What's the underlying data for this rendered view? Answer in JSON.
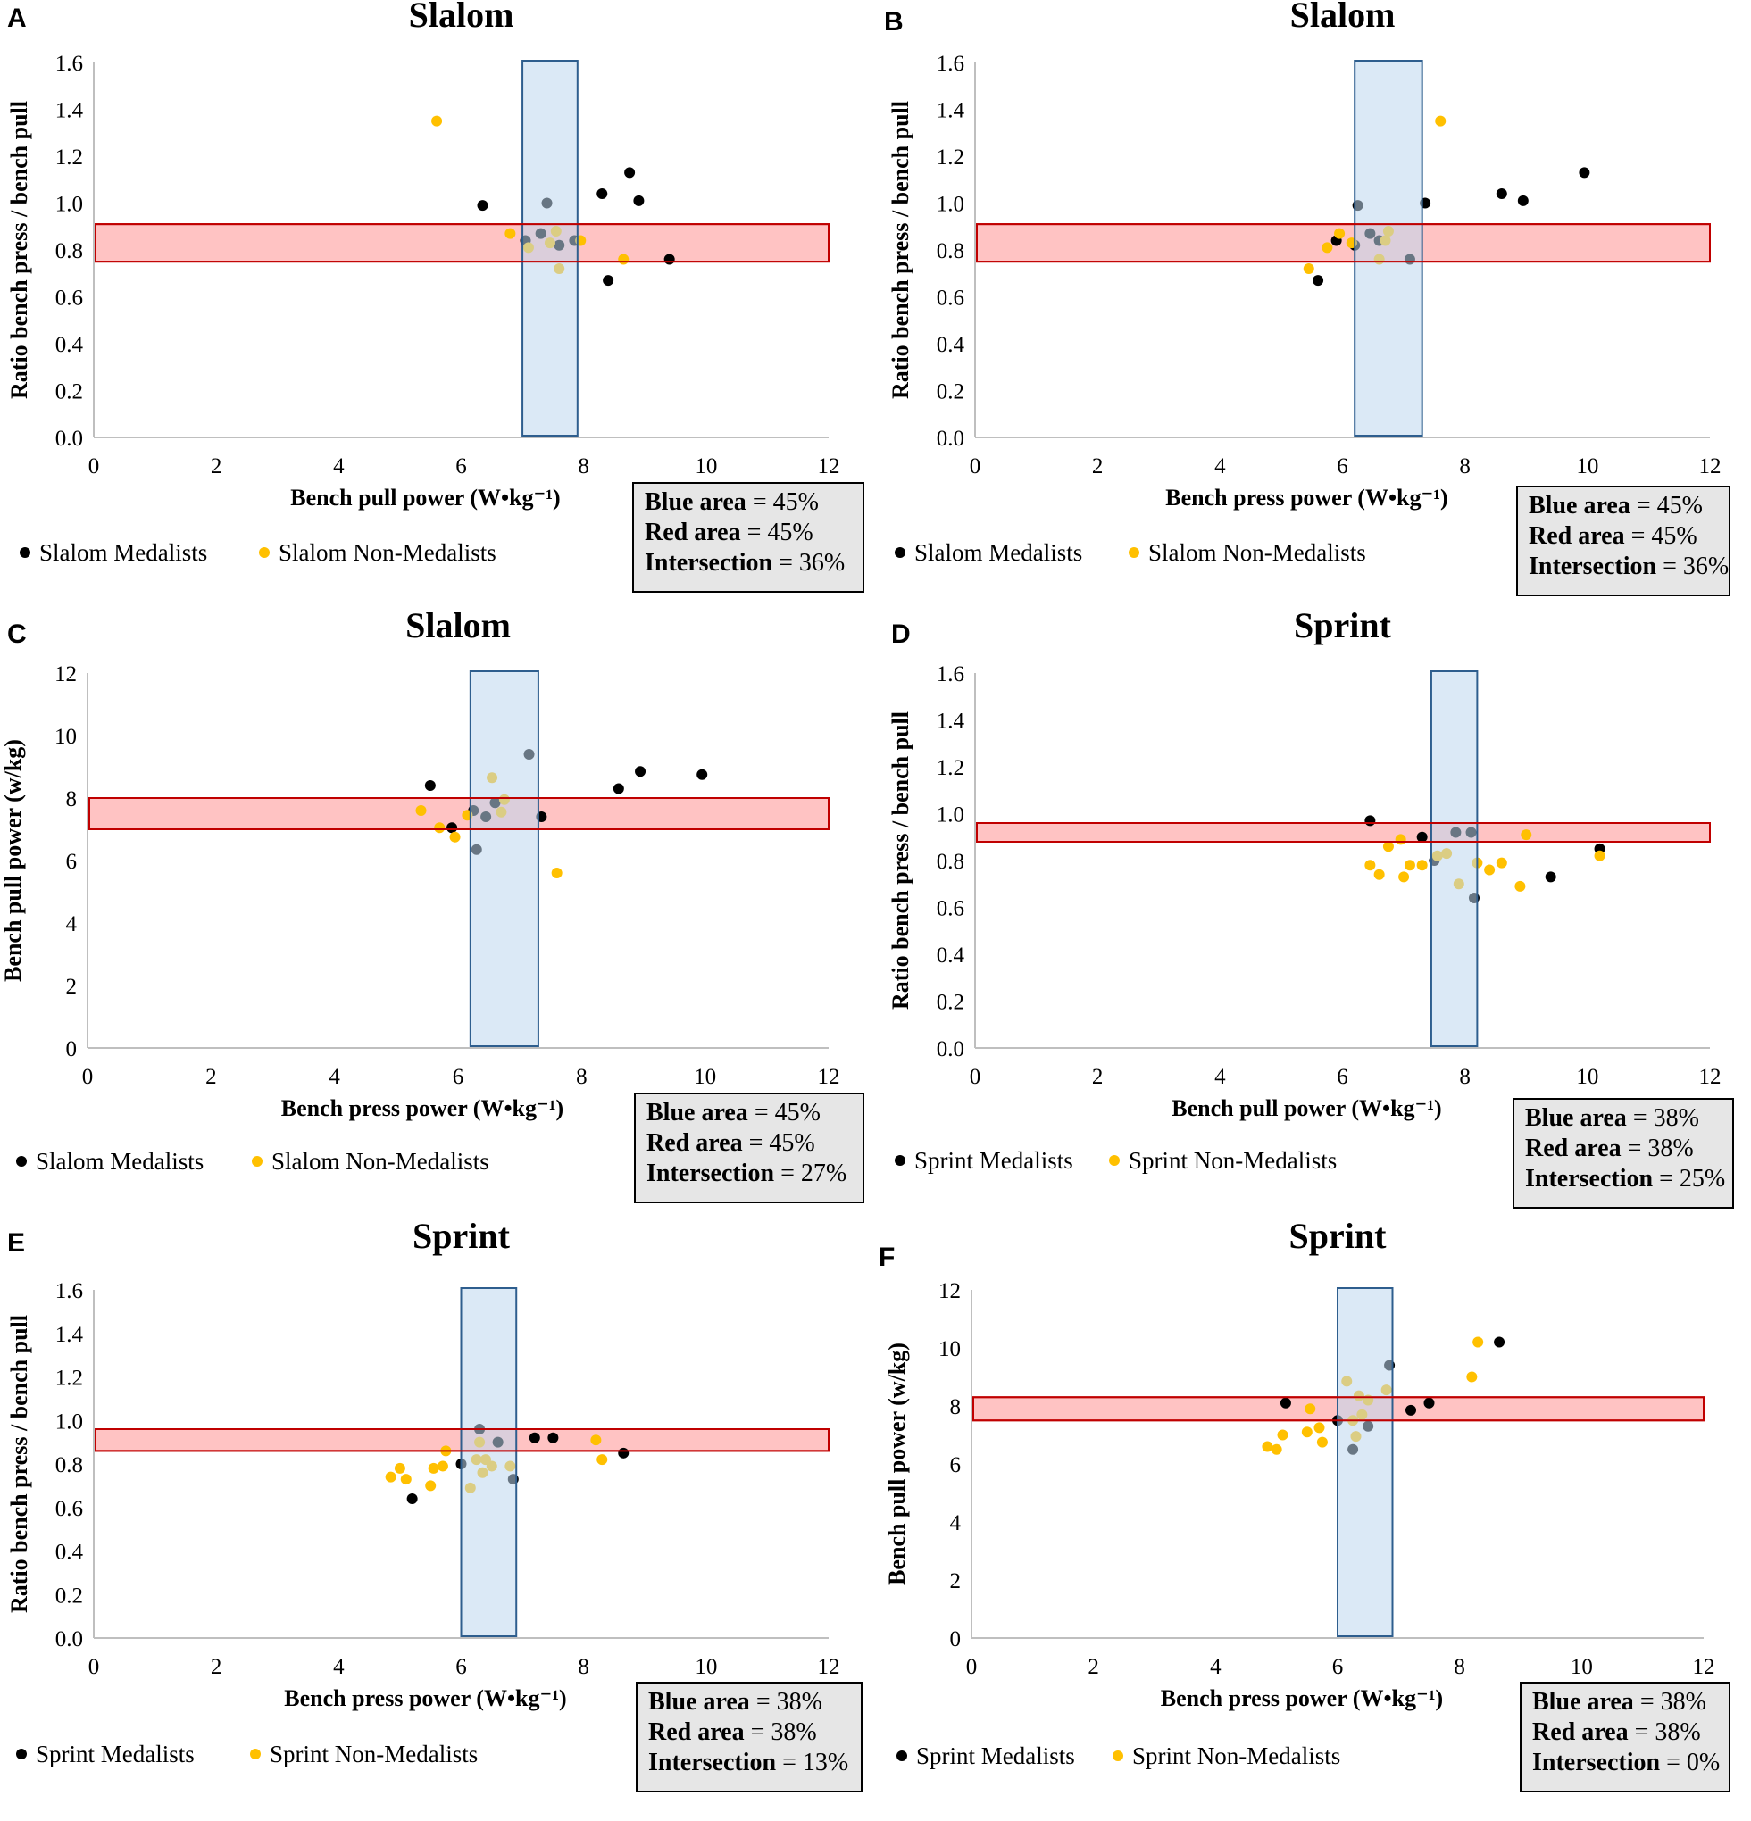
{
  "figure": {
    "colors": {
      "medalist": "#000000",
      "non_medalist": "#FFC000",
      "blue_fill": "#BDD7EE",
      "blue_stroke": "#2E5E8E",
      "red_fill": "#FFB8B8",
      "red_stroke": "#C00000",
      "axis": "#BFBFBF"
    }
  },
  "chart_data": [
    {
      "panel": "A",
      "type": "scatter",
      "title": "Slalom",
      "xlabel": "Bench pull power (W•kg⁻¹)",
      "ylabel": "Ratio bench press / bench pull",
      "xlim": [
        0,
        12
      ],
      "ylim": [
        0,
        1.6
      ],
      "xticks": [
        "0",
        "2",
        "4",
        "6",
        "8",
        "10",
        "12"
      ],
      "yticks": [
        "0.0",
        "0.2",
        "0.4",
        "0.6",
        "0.8",
        "1.0",
        "1.2",
        "1.4",
        "1.6"
      ],
      "blue_band_x": [
        7.0,
        7.9
      ],
      "red_band_y": [
        0.75,
        0.91
      ],
      "series": [
        {
          "name": "Slalom Medalists",
          "color": "#000000",
          "x": [
            6.35,
            7.4,
            8.3,
            8.75,
            8.9,
            7.05,
            7.3,
            7.6,
            7.85,
            8.4,
            9.4
          ],
          "y": [
            0.99,
            1.0,
            1.04,
            1.13,
            1.01,
            0.84,
            0.87,
            0.82,
            0.84,
            0.67,
            0.76
          ]
        },
        {
          "name": "Slalom Non-Medalists",
          "color": "#FFC000",
          "x": [
            5.6,
            6.8,
            7.1,
            7.45,
            7.55,
            7.6,
            7.95,
            8.65
          ],
          "y": [
            1.35,
            0.87,
            0.81,
            0.83,
            0.88,
            0.72,
            0.84,
            0.76
          ]
        }
      ],
      "box": {
        "blue_label": "Blue area",
        "blue_value": "= 45%",
        "red_label": "Red area",
        "red_value": "= 45%",
        "int_label": "Intersection",
        "int_value": "= 36%"
      }
    },
    {
      "panel": "B",
      "type": "scatter",
      "title": "Slalom",
      "xlabel": "Bench press power (W•kg⁻¹)",
      "ylabel": "Ratio bench press / bench pull",
      "xlim": [
        0,
        12
      ],
      "ylim": [
        0,
        1.6
      ],
      "xticks": [
        "0",
        "2",
        "4",
        "6",
        "8",
        "10",
        "12"
      ],
      "yticks": [
        "0.0",
        "0.2",
        "0.4",
        "0.6",
        "0.8",
        "1.0",
        "1.2",
        "1.4",
        "1.6"
      ],
      "blue_band_x": [
        6.2,
        7.3
      ],
      "red_band_y": [
        0.75,
        0.91
      ],
      "series": [
        {
          "name": "Slalom Medalists",
          "color": "#000000",
          "x": [
            5.6,
            5.9,
            6.2,
            6.25,
            6.45,
            6.6,
            7.1,
            7.35,
            8.6,
            8.95,
            9.95
          ],
          "y": [
            0.67,
            0.84,
            0.82,
            0.99,
            0.87,
            0.84,
            0.76,
            1.0,
            1.04,
            1.01,
            1.13
          ]
        },
        {
          "name": "Slalom Non-Medalists",
          "color": "#FFC000",
          "x": [
            5.45,
            5.75,
            5.95,
            6.15,
            6.6,
            6.7,
            6.75,
            7.6
          ],
          "y": [
            0.72,
            0.81,
            0.87,
            0.83,
            0.76,
            0.84,
            0.88,
            1.35
          ]
        }
      ],
      "box": {
        "blue_label": "Blue area",
        "blue_value": "= 45%",
        "red_label": "Red area",
        "red_value": "= 45%",
        "int_label": "Intersection",
        "int_value": "= 36%"
      }
    },
    {
      "panel": "C",
      "type": "scatter",
      "title": "Slalom",
      "xlabel": "Bench press power (W•kg⁻¹)",
      "ylabel": "Bench pull power (w/kg)",
      "xlim": [
        0,
        12
      ],
      "ylim": [
        0,
        12
      ],
      "xticks": [
        "0",
        "2",
        "4",
        "6",
        "8",
        "10",
        "12"
      ],
      "yticks": [
        "0",
        "2",
        "4",
        "6",
        "8",
        "10",
        "12"
      ],
      "blue_band_x": [
        6.2,
        7.3
      ],
      "red_band_y": [
        7.0,
        8.0
      ],
      "series": [
        {
          "name": "Slalom Medalists",
          "color": "#000000",
          "x": [
            5.55,
            5.9,
            6.25,
            6.3,
            6.45,
            6.6,
            7.15,
            7.35,
            8.6,
            8.95,
            9.95
          ],
          "y": [
            8.4,
            7.05,
            7.6,
            6.35,
            7.4,
            7.85,
            9.4,
            7.4,
            8.3,
            8.85,
            8.75
          ]
        },
        {
          "name": "Slalom Non-Medalists",
          "color": "#FFC000",
          "x": [
            5.4,
            5.7,
            5.95,
            6.15,
            6.55,
            6.7,
            6.75,
            7.6
          ],
          "y": [
            7.6,
            7.05,
            6.75,
            7.45,
            8.65,
            7.55,
            7.95,
            5.6
          ]
        }
      ],
      "box": {
        "blue_label": "Blue area",
        "blue_value": "= 45%",
        "red_label": "Red area",
        "red_value": "= 45%",
        "int_label": "Intersection",
        "int_value": "= 27%"
      }
    },
    {
      "panel": "D",
      "type": "scatter",
      "title": "Sprint",
      "xlabel": "Bench pull power (W•kg⁻¹)",
      "ylabel": "Ratio bench press / bench pull",
      "xlim": [
        0,
        12
      ],
      "ylim": [
        0,
        1.6
      ],
      "xticks": [
        "0",
        "2",
        "4",
        "6",
        "8",
        "10",
        "12"
      ],
      "yticks": [
        "0.0",
        "0.2",
        "0.4",
        "0.6",
        "0.8",
        "1.0",
        "1.2",
        "1.4",
        "1.6"
      ],
      "blue_band_x": [
        7.45,
        8.2
      ],
      "red_band_y": [
        0.88,
        0.96
      ],
      "series": [
        {
          "name": "Sprint Medalists",
          "color": "#000000",
          "x": [
            6.45,
            7.3,
            7.5,
            7.85,
            8.1,
            8.15,
            9.4,
            10.2
          ],
          "y": [
            0.97,
            0.9,
            0.8,
            0.92,
            0.92,
            0.64,
            0.73,
            0.85
          ]
        },
        {
          "name": "Sprint Non-Medalists",
          "color": "#FFC000",
          "x": [
            6.45,
            6.6,
            6.75,
            6.95,
            7.0,
            7.1,
            7.3,
            7.55,
            7.7,
            7.9,
            8.2,
            8.4,
            8.6,
            8.9,
            9.0,
            10.2
          ],
          "y": [
            0.78,
            0.74,
            0.86,
            0.89,
            0.73,
            0.78,
            0.78,
            0.82,
            0.83,
            0.7,
            0.79,
            0.76,
            0.79,
            0.69,
            0.91,
            0.82
          ]
        }
      ],
      "box": {
        "blue_label": "Blue area",
        "blue_value": "= 38%",
        "red_label": "Red area",
        "red_value": "= 38%",
        "int_label": "Intersection",
        "int_value": "= 25%"
      }
    },
    {
      "panel": "E",
      "type": "scatter",
      "title": "Sprint",
      "xlabel": "Bench press power (W•kg⁻¹)",
      "ylabel": "Ratio bench press / bench pull",
      "xlim": [
        0,
        12
      ],
      "ylim": [
        0,
        1.6
      ],
      "xticks": [
        "0",
        "2",
        "4",
        "6",
        "8",
        "10",
        "12"
      ],
      "yticks": [
        "0.0",
        "0.2",
        "0.4",
        "0.6",
        "0.8",
        "1.0",
        "1.2",
        "1.4",
        "1.6"
      ],
      "blue_band_x": [
        6.0,
        6.9
      ],
      "red_band_y": [
        0.86,
        0.96
      ],
      "series": [
        {
          "name": "Sprint Medalists",
          "color": "#000000",
          "x": [
            5.2,
            6.0,
            6.3,
            6.6,
            6.85,
            7.2,
            7.5,
            8.65
          ],
          "y": [
            0.64,
            0.8,
            0.96,
            0.9,
            0.73,
            0.92,
            0.92,
            0.85
          ]
        },
        {
          "name": "Sprint Non-Medalists",
          "color": "#FFC000",
          "x": [
            4.85,
            5.0,
            5.1,
            5.5,
            5.55,
            5.7,
            5.75,
            6.15,
            6.25,
            6.3,
            6.35,
            6.4,
            6.5,
            6.8,
            8.2,
            8.3
          ],
          "y": [
            0.74,
            0.78,
            0.73,
            0.7,
            0.78,
            0.79,
            0.86,
            0.69,
            0.82,
            0.9,
            0.76,
            0.82,
            0.79,
            0.79,
            0.91,
            0.82
          ]
        }
      ],
      "box": {
        "blue_label": "Blue area",
        "blue_value": "= 38%",
        "red_label": "Red area",
        "red_value": "= 38%",
        "int_label": "Intersection",
        "int_value": "= 13%"
      }
    },
    {
      "panel": "F",
      "type": "scatter",
      "title": "Sprint",
      "xlabel": "Bench press power (W•kg⁻¹)",
      "ylabel": "Bench pull power (w/kg)",
      "xlim": [
        0,
        12
      ],
      "ylim": [
        0,
        12
      ],
      "xticks": [
        "0",
        "2",
        "4",
        "6",
        "8",
        "10",
        "12"
      ],
      "yticks": [
        "0",
        "2",
        "4",
        "6",
        "8",
        "10",
        "12"
      ],
      "blue_band_x": [
        6.0,
        6.9
      ],
      "red_band_y": [
        7.5,
        8.3
      ],
      "series": [
        {
          "name": "Sprint Medalists",
          "color": "#000000",
          "x": [
            5.15,
            6.0,
            6.25,
            6.5,
            6.85,
            7.2,
            7.5,
            8.65
          ],
          "y": [
            8.1,
            7.5,
            6.5,
            7.3,
            9.4,
            7.85,
            8.1,
            10.2
          ]
        },
        {
          "name": "Sprint Non-Medalists",
          "color": "#FFC000",
          "x": [
            4.85,
            5.0,
            5.1,
            5.5,
            5.55,
            5.7,
            5.75,
            6.15,
            6.25,
            6.3,
            6.35,
            6.4,
            6.5,
            6.8,
            8.2,
            8.3
          ],
          "y": [
            6.6,
            6.5,
            7.0,
            7.1,
            7.9,
            7.25,
            6.75,
            8.85,
            7.5,
            6.95,
            8.35,
            7.7,
            8.2,
            8.55,
            9.0,
            10.2
          ]
        }
      ],
      "box": {
        "blue_label": "Blue area",
        "blue_value": "= 38%",
        "red_label": "Red area",
        "red_value": "= 38%",
        "int_label": "Intersection",
        "int_value": "= 0%"
      }
    }
  ]
}
